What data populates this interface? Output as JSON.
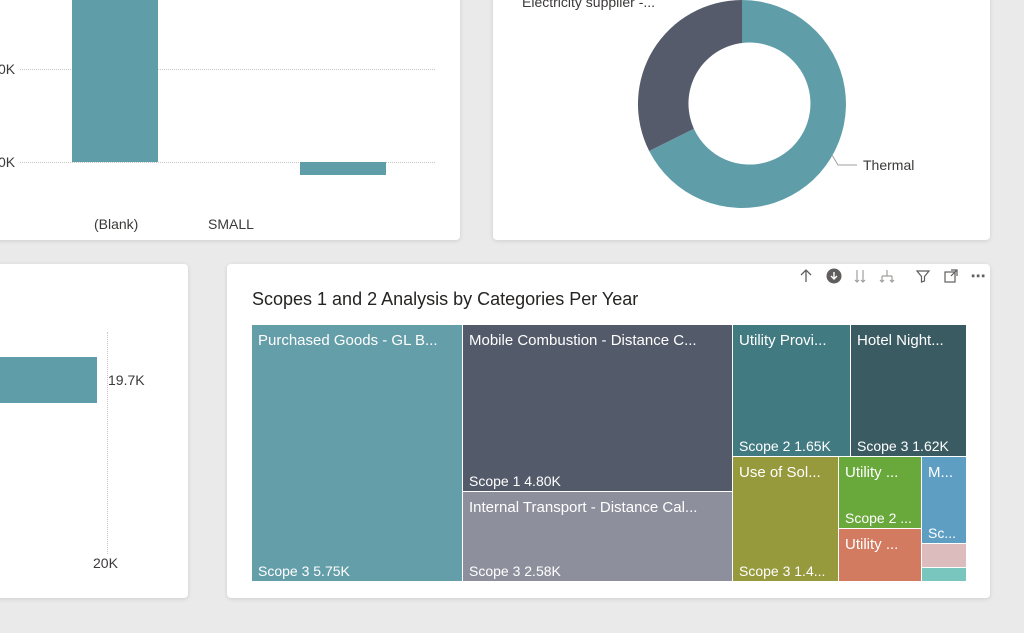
{
  "bar_card": {
    "tick_labels": [
      "0K",
      "0K"
    ],
    "categories": [
      "(Blank)",
      "SMALL"
    ],
    "bar_color": "#5f9ea9"
  },
  "donut_card": {
    "labels": [
      "Electricity supplier -...",
      "Thermal"
    ],
    "colors": [
      "#555b6b",
      "#5f9ea9"
    ]
  },
  "hbar_card": {
    "value_label": "19.7K",
    "axis_label": "20K"
  },
  "treemap_card": {
    "title": "Scopes 1 and 2 Analysis by Categories Per Year",
    "toolbar_icons": [
      "drill-up-icon",
      "drill-down-icon",
      "expand-all-icon",
      "expand-next-level-icon",
      "filter-icon",
      "focus-mode-icon",
      "more-options-icon"
    ],
    "tiles": [
      {
        "name": "Purchased Goods - GL B...",
        "value": "Scope 3 5.75K",
        "color": "#639ea9"
      },
      {
        "name": "Mobile Combustion - Distance C...",
        "value": "Scope 1 4.80K",
        "color": "#535a6a"
      },
      {
        "name": "Internal Transport - Distance Cal...",
        "value": "Scope 3 2.58K",
        "color": "#8d909c"
      },
      {
        "name": "Utility Provi...",
        "value": "Scope 2 1.65K",
        "color": "#427a82"
      },
      {
        "name": "Hotel Night...",
        "value": "Scope 3 1.62K",
        "color": "#3b5b63"
      },
      {
        "name": "Use of Sol...",
        "value": "Scope 3 1.4...",
        "color": "#97993d"
      },
      {
        "name": "Utility ...",
        "value": "Scope 2 ...",
        "color": "#69a83a"
      },
      {
        "name": "Utility ...",
        "value": "",
        "color": "#d27b60"
      },
      {
        "name": "M...",
        "value": "Sc...",
        "color": "#5e9ec2"
      },
      {
        "name": "",
        "value": "",
        "color": "#dcbcbc"
      },
      {
        "name": "",
        "value": "",
        "color": "#79c6bf"
      }
    ]
  }
}
